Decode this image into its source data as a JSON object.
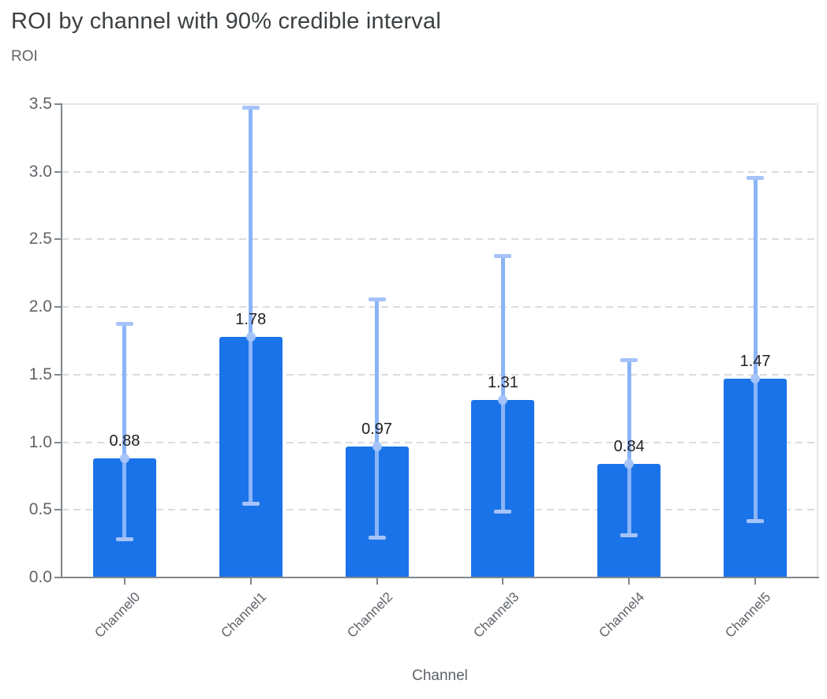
{
  "chart_data": {
    "type": "bar",
    "title": "ROI by channel with 90% credible interval",
    "xlabel": "Channel",
    "ylabel": "ROI",
    "categories": [
      "Channel0",
      "Channel1",
      "Channel2",
      "Channel3",
      "Channel4",
      "Channel5"
    ],
    "series": [
      {
        "name": "ROI",
        "values": [
          0.88,
          1.78,
          0.97,
          1.31,
          0.84,
          1.47
        ]
      }
    ],
    "value_labels": [
      "0.88",
      "1.78",
      "0.97",
      "1.31",
      "0.84",
      "1.47"
    ],
    "error_bars": {
      "label": "90% credible interval",
      "low": [
        0.27,
        0.53,
        0.28,
        0.47,
        0.3,
        0.4
      ],
      "high": [
        1.89,
        3.49,
        2.07,
        2.39,
        1.62,
        2.97
      ]
    },
    "ylim": [
      0,
      3.5
    ],
    "y_ticks": [
      0.0,
      0.5,
      1.0,
      1.5,
      2.0,
      2.5,
      3.0,
      3.5
    ],
    "y_tick_labels": [
      "0.0",
      "0.5",
      "1.0",
      "1.5",
      "2.0",
      "2.5",
      "3.0",
      "3.5"
    ],
    "grid": {
      "horizontal": true,
      "style": "dashed",
      "legend_position": "none"
    },
    "legend": "none",
    "colors": {
      "bar": "#1a73e8",
      "error_line": "#8ab4f8",
      "error_cap": "#a6c3f9",
      "error_marker": "#a6c3f9",
      "grid": "#dadce0",
      "frame": "#e6e6e6",
      "axis": "#80868b",
      "axis_text": "#5f6368",
      "value_text": "#202124",
      "title_text": "#3c4043"
    }
  }
}
